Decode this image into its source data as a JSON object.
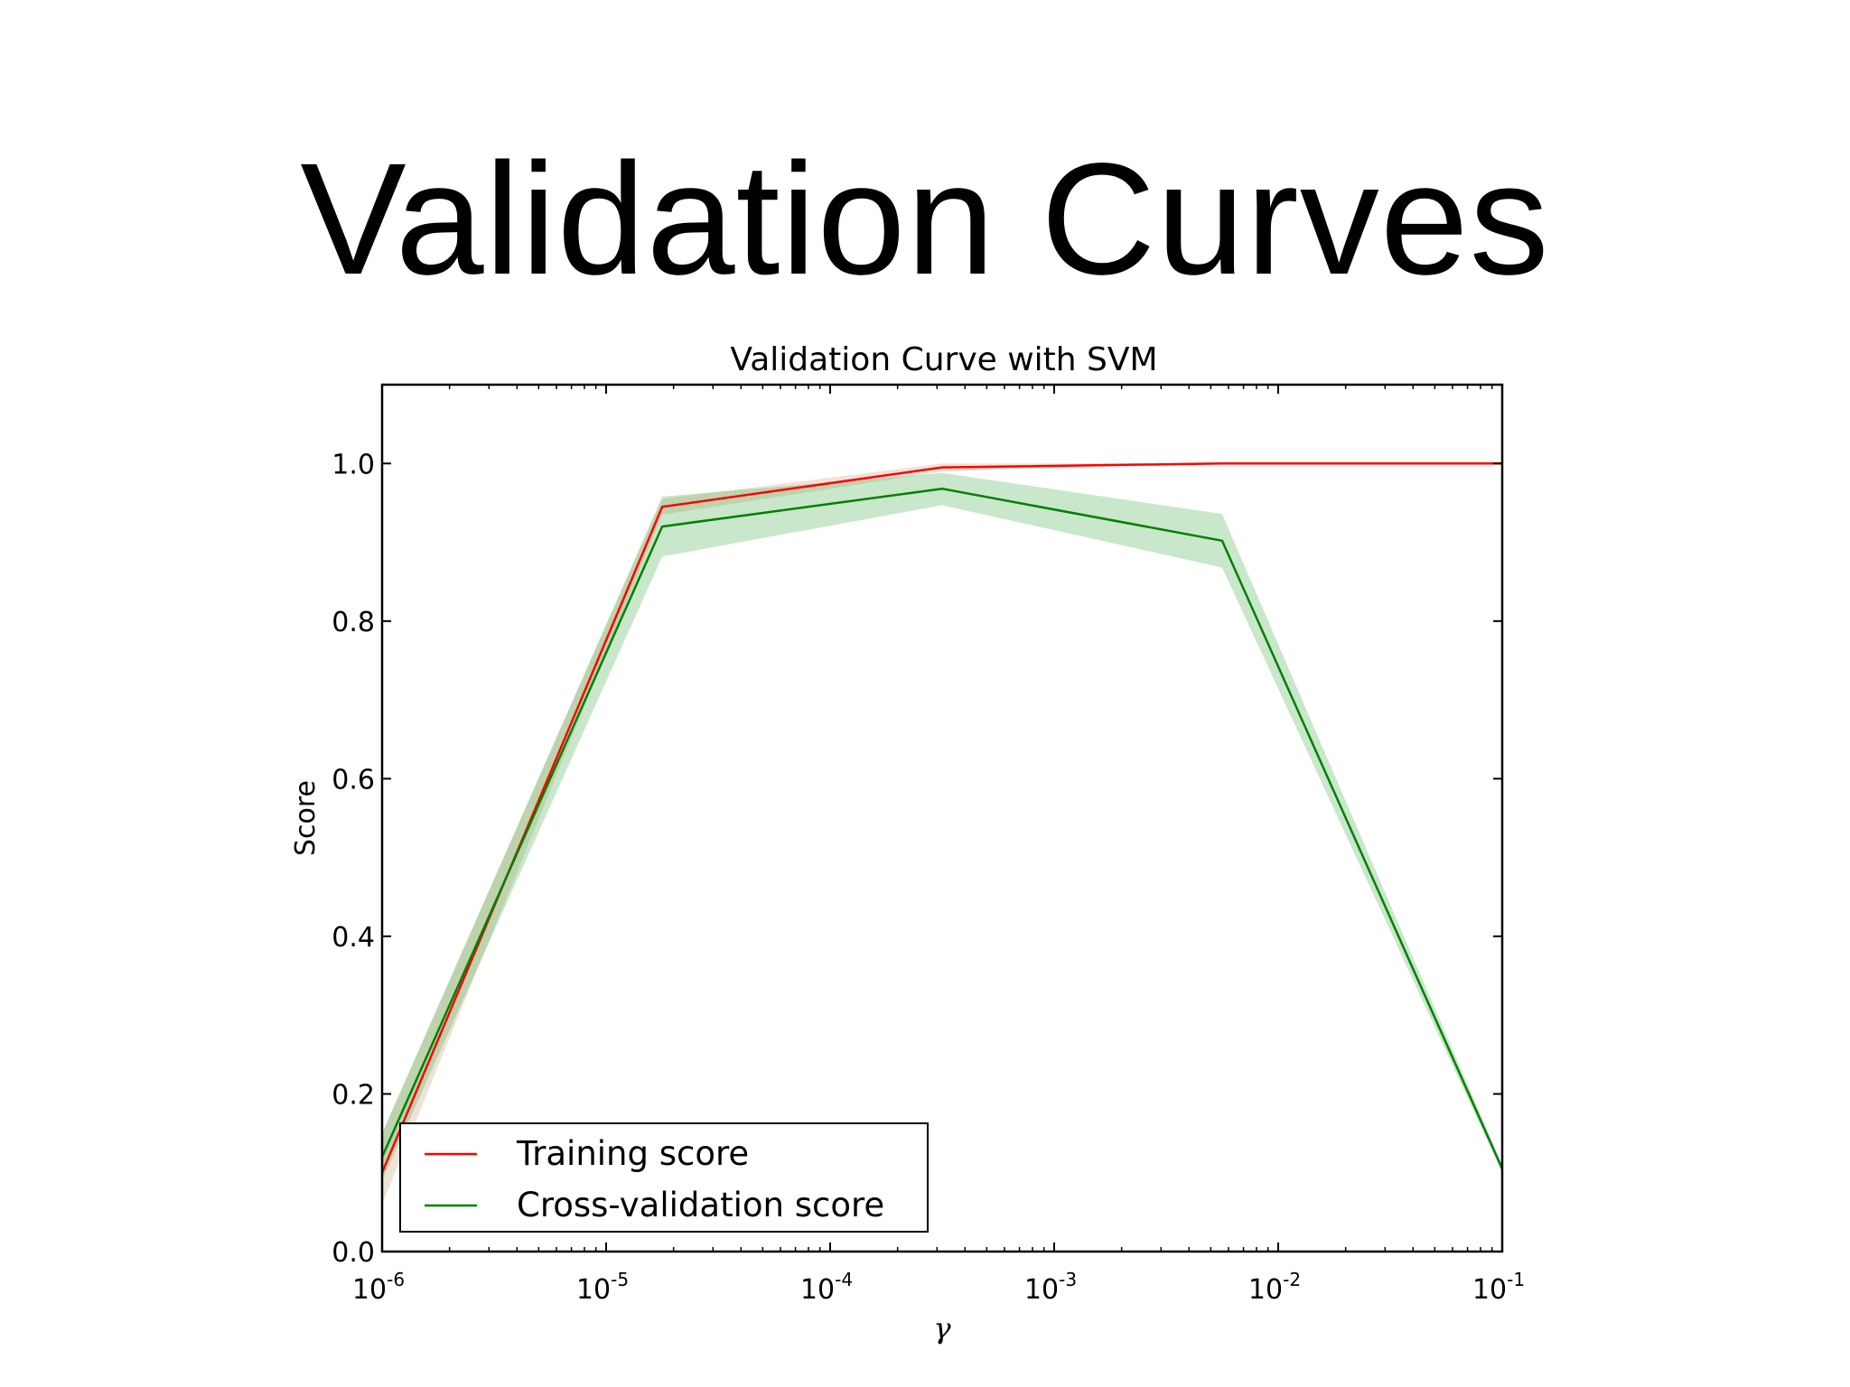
{
  "slide": {
    "title": "Validation Curves"
  },
  "chart_data": {
    "type": "line",
    "title": "Validation Curve with SVM",
    "xlabel": "γ",
    "ylabel": "Score",
    "xscale": "log",
    "xlim": [
      1e-06,
      0.1
    ],
    "ylim": [
      0.0,
      1.1
    ],
    "x_ticks": [
      {
        "value": 1e-06,
        "base": "10",
        "exp": "-6"
      },
      {
        "value": 1e-05,
        "base": "10",
        "exp": "-5"
      },
      {
        "value": 0.0001,
        "base": "10",
        "exp": "-4"
      },
      {
        "value": 0.001,
        "base": "10",
        "exp": "-3"
      },
      {
        "value": 0.01,
        "base": "10",
        "exp": "-2"
      },
      {
        "value": 0.1,
        "base": "10",
        "exp": "-1"
      }
    ],
    "y_ticks": [
      {
        "value": 0.0,
        "label": "0.0"
      },
      {
        "value": 0.2,
        "label": "0.2"
      },
      {
        "value": 0.4,
        "label": "0.4"
      },
      {
        "value": 0.6,
        "label": "0.6"
      },
      {
        "value": 0.8,
        "label": "0.8"
      },
      {
        "value": 1.0,
        "label": "1.0"
      }
    ],
    "x": [
      1e-06,
      1.78e-05,
      0.000316,
      0.00562,
      0.1
    ],
    "grid": false,
    "legend_position": "lower-left",
    "series": [
      {
        "name": "Training score",
        "color": "#ff0000",
        "band_color": "#c8a27a",
        "values": [
          0.1,
          0.945,
          0.995,
          1.0,
          1.0
        ],
        "lower": [
          0.06,
          0.935,
          0.99,
          1.0,
          1.0
        ],
        "upper": [
          0.15,
          0.955,
          1.0,
          1.0,
          1.0
        ]
      },
      {
        "name": "Cross-validation score",
        "color": "#008000",
        "band_color": "#4caf50",
        "values": [
          0.12,
          0.92,
          0.968,
          0.902,
          0.105
        ],
        "lower": [
          0.09,
          0.882,
          0.947,
          0.868,
          0.1
        ],
        "upper": [
          0.15,
          0.958,
          0.988,
          0.936,
          0.11
        ]
      }
    ]
  }
}
